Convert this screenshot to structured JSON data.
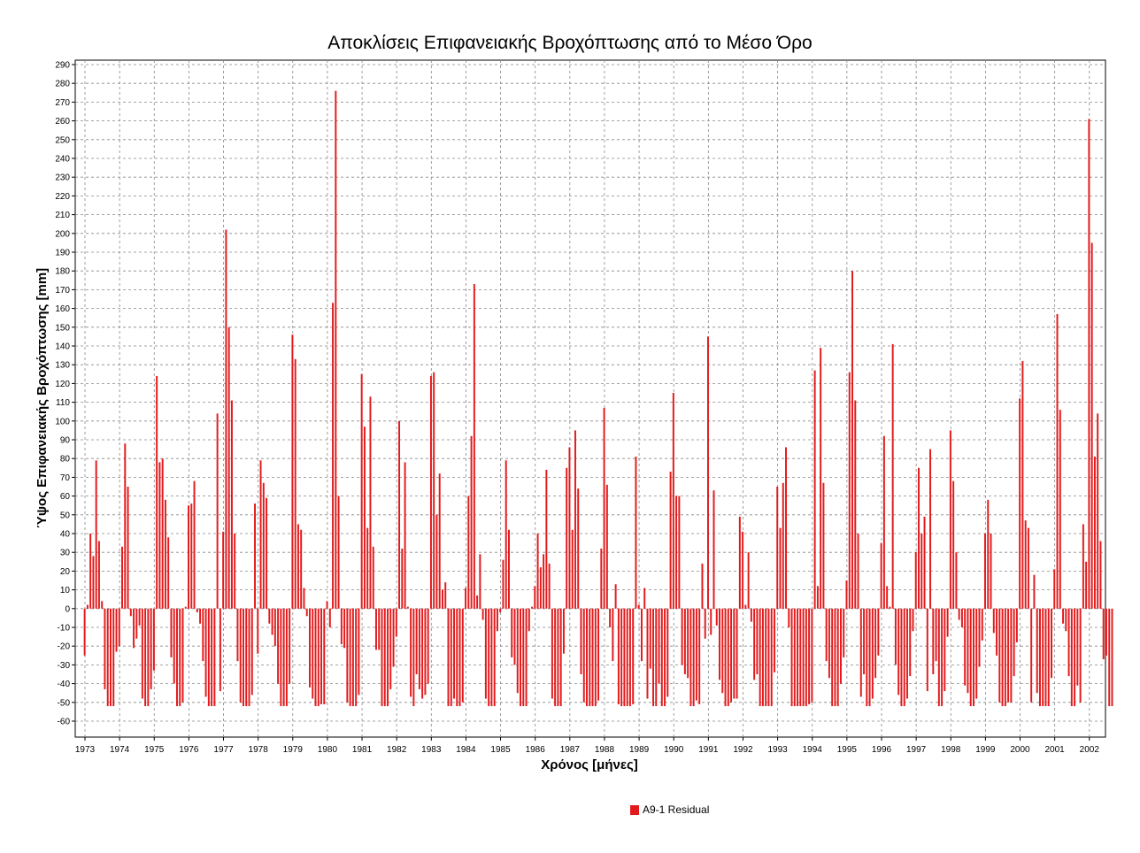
{
  "chart_data": {
    "type": "bar",
    "title": "Αποκλίσεις Επιφανειακής Βροχόπτωσης από το Μέσο Όρο",
    "xlabel": "Χρόνος [μήνες]",
    "ylabel": "Ύψος Επιφανειακής Βροχόπτωσης [mm]",
    "ylim": [
      -60,
      290
    ],
    "ytick_step": 10,
    "grid": true,
    "legend_position": "bottom-center",
    "x_start_year": 1973,
    "years": [
      "1973",
      "1974",
      "1975",
      "1976",
      "1977",
      "1978",
      "1979",
      "1980",
      "1981",
      "1982",
      "1983",
      "1984",
      "1985",
      "1986",
      "1987",
      "1988",
      "1989",
      "1990",
      "1991",
      "1992",
      "1993",
      "1994",
      "1995",
      "1996",
      "1997",
      "1998",
      "1999",
      "2000",
      "2001",
      "2002"
    ],
    "series": [
      {
        "name": "A9-1 Residual",
        "color": "#e31a1c",
        "values": [
          -25,
          2,
          40,
          28,
          79,
          36,
          4,
          -43,
          -52,
          -52,
          -52,
          -23,
          -20,
          33,
          88,
          65,
          -4,
          -21,
          -16,
          -9,
          -48,
          -52,
          -52,
          -43,
          -33,
          124,
          78,
          80,
          58,
          38,
          -26,
          -40,
          -52,
          -52,
          -50,
          1,
          55,
          56,
          68,
          -2,
          -8,
          -28,
          -47,
          -52,
          -52,
          -52,
          104,
          -44,
          41,
          202,
          150,
          111,
          40,
          -28,
          -50,
          -52,
          -52,
          -52,
          -46,
          56,
          -24,
          79,
          67,
          59,
          -8,
          -14,
          -20,
          -40,
          -52,
          -52,
          -52,
          -40,
          146,
          133,
          45,
          42,
          11,
          -4,
          -42,
          -48,
          -52,
          -52,
          -51,
          -51,
          4,
          -10,
          163,
          276,
          60,
          -19,
          -21,
          -50,
          -52,
          -52,
          -52,
          -46,
          125,
          97,
          43,
          113,
          33,
          -22,
          -22,
          -52,
          -52,
          -52,
          -43,
          -31,
          -15,
          100,
          32,
          78,
          1,
          -47,
          -52,
          -35,
          -43,
          -48,
          -46,
          -40,
          124,
          126,
          50,
          72,
          10,
          14,
          -52,
          -52,
          -48,
          -52,
          -52,
          -50,
          11,
          60,
          92,
          173,
          7,
          29,
          -6,
          -48,
          -52,
          -52,
          -52,
          -12,
          -2,
          26,
          79,
          42,
          -26,
          -30,
          -45,
          -52,
          -52,
          -52,
          -12,
          1,
          12,
          40,
          22,
          29,
          74,
          24,
          -48,
          -52,
          -52,
          -52,
          -24,
          75,
          86,
          42,
          95,
          64,
          -35,
          -50,
          -52,
          -52,
          -52,
          -52,
          -49,
          32,
          107,
          66,
          -10,
          -28,
          13,
          -51,
          -52,
          -52,
          -52,
          -52,
          -51,
          81,
          2,
          -28,
          11,
          -48,
          -32,
          -52,
          -52,
          -40,
          -52,
          -52,
          -47,
          73,
          115,
          60,
          60,
          -30,
          -35,
          -37,
          -52,
          -52,
          -49,
          -51,
          24,
          -16,
          145,
          -14,
          63,
          -9,
          -38,
          -45,
          -52,
          -52,
          -50,
          -48,
          -48,
          49,
          41,
          2,
          30,
          -7,
          -38,
          -35,
          -52,
          -52,
          -52,
          -52,
          -52,
          -34,
          65,
          43,
          67,
          86,
          -10,
          -52,
          -52,
          -52,
          -52,
          -52,
          -52,
          -51,
          -50,
          127,
          12,
          139,
          67,
          -28,
          -37,
          -52,
          -52,
          -52,
          -40,
          -26,
          15,
          126,
          180,
          111,
          40,
          -47,
          -35,
          -52,
          -52,
          -48,
          -37,
          -25,
          35,
          92,
          12,
          1,
          141,
          -30,
          -46,
          -52,
          -52,
          -48,
          -36,
          -12,
          30,
          75,
          40,
          49,
          -44,
          85,
          -35,
          -28,
          -52,
          -52,
          -44,
          -15,
          95,
          68,
          30,
          -6,
          -10,
          -41,
          -45,
          -52,
          -52,
          -48,
          -31,
          -17,
          40,
          58,
          40,
          -13,
          -25,
          -50,
          -52,
          -52,
          -50,
          -50,
          -36,
          -18,
          112,
          132,
          47,
          43,
          -50,
          18,
          -45,
          -52,
          -52,
          -52,
          -52,
          -37,
          21,
          157,
          106,
          -8,
          -12,
          -36,
          -52,
          -52,
          -41,
          -50,
          45,
          25,
          261,
          195,
          81,
          104,
          36,
          -27,
          -25,
          -52,
          -52
        ]
      }
    ]
  }
}
